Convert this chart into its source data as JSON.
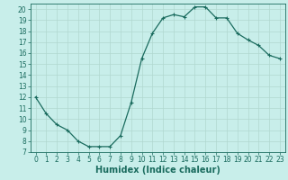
{
  "x": [
    0,
    1,
    2,
    3,
    4,
    5,
    6,
    7,
    8,
    9,
    10,
    11,
    12,
    13,
    14,
    15,
    16,
    17,
    18,
    19,
    20,
    21,
    22,
    23
  ],
  "y": [
    12,
    10.5,
    9.5,
    9,
    8,
    7.5,
    7.5,
    7.5,
    8.5,
    11.5,
    15.5,
    17.8,
    19.2,
    19.5,
    19.3,
    20.2,
    20.2,
    19.2,
    19.2,
    17.8,
    17.2,
    16.7,
    15.8,
    15.5
  ],
  "line_color": "#1a6b5e",
  "marker": "+",
  "bg_color": "#c8eeea",
  "grid_color": "#b0d8d0",
  "xlabel": "Humidex (Indice chaleur)",
  "xlim": [
    -0.5,
    23.5
  ],
  "ylim": [
    7,
    20.5
  ],
  "yticks": [
    7,
    8,
    9,
    10,
    11,
    12,
    13,
    14,
    15,
    16,
    17,
    18,
    19,
    20
  ],
  "xticks": [
    0,
    1,
    2,
    3,
    4,
    5,
    6,
    7,
    8,
    9,
    10,
    11,
    12,
    13,
    14,
    15,
    16,
    17,
    18,
    19,
    20,
    21,
    22,
    23
  ],
  "tick_fontsize": 5.5,
  "label_fontsize": 7.0
}
